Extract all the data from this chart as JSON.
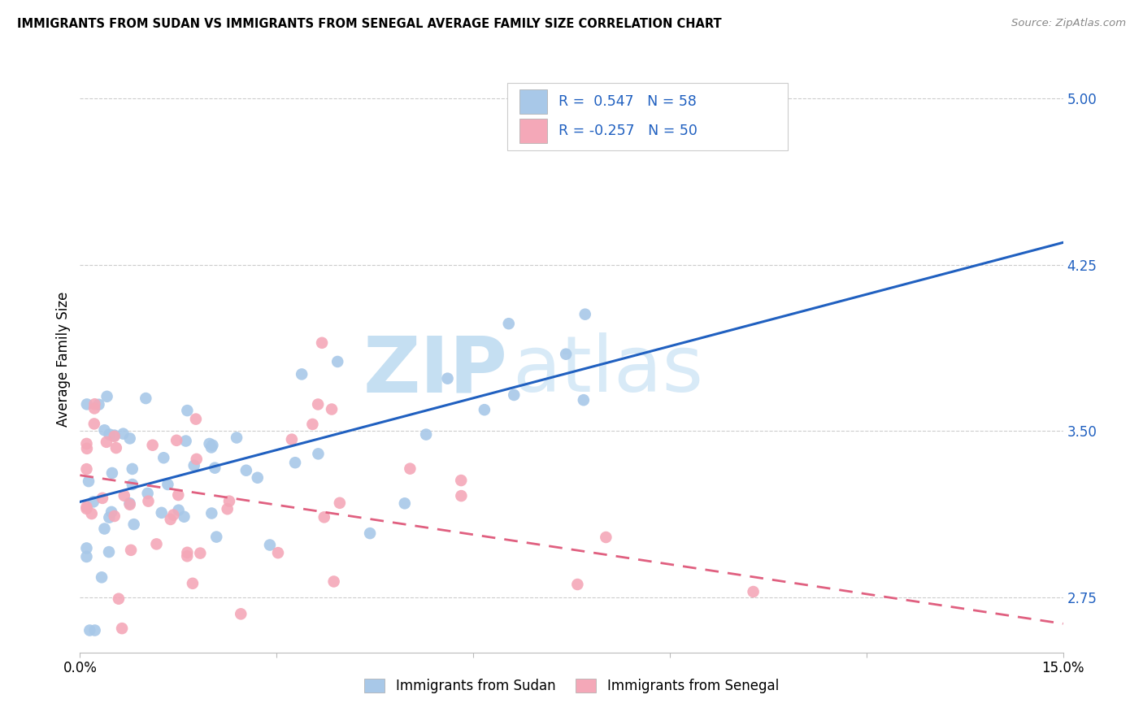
{
  "title": "IMMIGRANTS FROM SUDAN VS IMMIGRANTS FROM SENEGAL AVERAGE FAMILY SIZE CORRELATION CHART",
  "source": "Source: ZipAtlas.com",
  "ylabel": "Average Family Size",
  "xlim": [
    0.0,
    0.15
  ],
  "ylim": [
    2.5,
    5.15
  ],
  "yticks": [
    2.75,
    3.5,
    4.25,
    5.0
  ],
  "sudan_color": "#a8c8e8",
  "senegal_color": "#f4a8b8",
  "sudan_line_color": "#2060c0",
  "senegal_line_color": "#e06080",
  "sudan_R": 0.547,
  "sudan_N": 58,
  "senegal_R": -0.257,
  "senegal_N": 50,
  "legend_sudan_label": "Immigrants from Sudan",
  "legend_senegal_label": "Immigrants from Senegal",
  "watermark_zip": "ZIP",
  "watermark_atlas": "atlas",
  "sudan_line_y0": 3.18,
  "sudan_line_y1": 4.35,
  "senegal_line_y0": 3.3,
  "senegal_line_y1": 2.63
}
